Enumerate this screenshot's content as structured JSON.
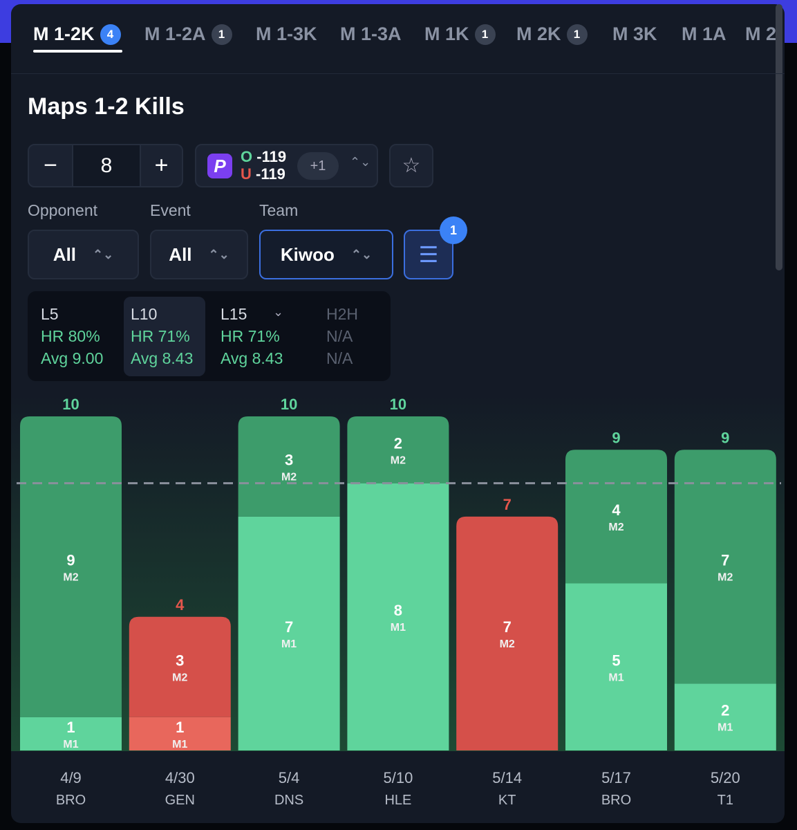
{
  "tabs": [
    {
      "label": "M 1-2K",
      "badge": 4
    },
    {
      "label": "M 1-2A",
      "badge": 1
    },
    {
      "label": "M 1-3K"
    },
    {
      "label": "M 1-3A"
    },
    {
      "label": "M 1K",
      "badge": 1
    },
    {
      "label": "M 2K",
      "badge": 1
    },
    {
      "label": "M 3K"
    },
    {
      "label": "M 1A"
    },
    {
      "label": "M 2"
    }
  ],
  "title": "Maps 1-2 Kills",
  "odds": {
    "over": "O",
    "over_price": -119,
    "under": "U",
    "under_price": -119,
    "more": "+1"
  },
  "filters": [
    {
      "label": "Opponent",
      "value": "All"
    },
    {
      "label": "Event",
      "value": "All"
    },
    {
      "label": "Team",
      "value": "Kiwoo"
    }
  ],
  "filter_badge": 1,
  "stats": [
    {
      "period": "L5",
      "hr": "HR 80%",
      "avg": "Avg 9.00"
    },
    {
      "period": "L10",
      "hr": "HR 71%",
      "avg": "Avg 8.43"
    },
    {
      "period": "L15",
      "hr": "HR 71%",
      "avg": "Avg 8.43"
    },
    {
      "period": "H2H",
      "hr": "N/A",
      "avg": "N/A"
    }
  ],
  "chart_data": {
    "type": "stacked-bar",
    "line": 8,
    "categories": [
      "4/9",
      "4/30",
      "5/4",
      "5/10",
      "5/14",
      "5/17",
      "5/20"
    ],
    "opponents": [
      "BRO",
      "GEN",
      "DNS",
      "HLE",
      "KT",
      "BRO",
      "T1"
    ],
    "totals": [
      10,
      4,
      10,
      10,
      7,
      9,
      9
    ],
    "series": [
      {
        "name": "M1",
        "color": "#5fd49c",
        "under_color": "#e8675c",
        "values": [
          1,
          1,
          7,
          8,
          null,
          5,
          2
        ]
      },
      {
        "name": "M2",
        "color": "#3d9c6b",
        "under_color": "#d5504a",
        "values": [
          9,
          3,
          3,
          2,
          7,
          4,
          7
        ]
      }
    ],
    "ylim": [
      0,
      10
    ],
    "over_color": "#5fd49c",
    "under_label_color": "#e5564c"
  }
}
